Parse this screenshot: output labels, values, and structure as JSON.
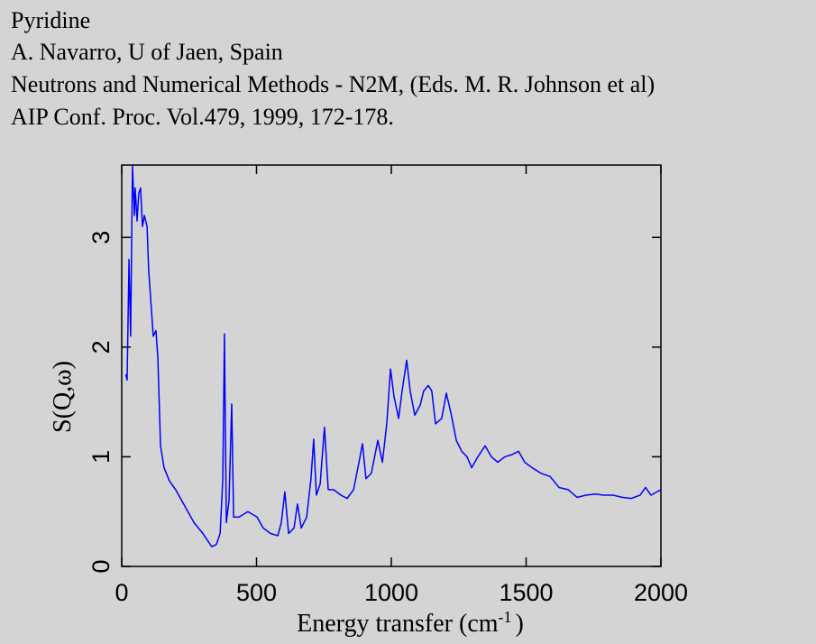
{
  "header": {
    "lines": [
      "Pyridine",
      "A. Navarro, U of Jaen, Spain",
      "Neutrons and Numerical Methods - N2M, (Eds. M. R. Johnson et al)",
      "AIP Conf. Proc. Vol.479, 1999, 172-178."
    ]
  },
  "chart_data": {
    "type": "line",
    "xlabel": {
      "text": "Energy transfer (cm",
      "superscript": "-1",
      "suffix": ")"
    },
    "ylabel": "S(Q,ω)",
    "xlim": [
      0,
      2000
    ],
    "ylim": [
      0,
      3.66
    ],
    "xticks": [
      0,
      500,
      1000,
      1500,
      2000
    ],
    "yticks": [
      0,
      1,
      2,
      3
    ],
    "grid": false,
    "series": [
      {
        "color": "#0000ff",
        "x": [
          15,
          20,
          27,
          33,
          40,
          47,
          50,
          57,
          63,
          70,
          77,
          84,
          94,
          100,
          110,
          117,
          127,
          134,
          144,
          157,
          177,
          200,
          234,
          268,
          301,
          334,
          351,
          365,
          375,
          381,
          388,
          398,
          408,
          415,
          435,
          468,
          502,
          525,
          552,
          579,
          592,
          605,
          619,
          639,
          652,
          666,
          686,
          702,
          712,
          722,
          736,
          752,
          766,
          786,
          813,
          836,
          860,
          880,
          893,
          906,
          926,
          950,
          967,
          983,
          997,
          1010,
          1027,
          1040,
          1057,
          1070,
          1087,
          1107,
          1120,
          1137,
          1150,
          1164,
          1187,
          1204,
          1221,
          1241,
          1261,
          1281,
          1298,
          1321,
          1348,
          1371,
          1395,
          1421,
          1448,
          1472,
          1495,
          1522,
          1555,
          1589,
          1622,
          1656,
          1689,
          1722,
          1756,
          1789,
          1823,
          1856,
          1890,
          1923,
          1943,
          1963,
          2000
        ],
        "values": [
          1.75,
          1.7,
          2.8,
          2.1,
          3.65,
          3.2,
          3.45,
          3.15,
          3.4,
          3.45,
          3.1,
          3.2,
          3.1,
          2.7,
          2.35,
          2.1,
          2.15,
          1.9,
          1.1,
          0.9,
          0.78,
          0.7,
          0.55,
          0.4,
          0.3,
          0.18,
          0.2,
          0.3,
          0.8,
          2.12,
          0.4,
          0.6,
          1.48,
          0.45,
          0.45,
          0.5,
          0.45,
          0.35,
          0.3,
          0.28,
          0.4,
          0.68,
          0.3,
          0.35,
          0.57,
          0.35,
          0.45,
          0.8,
          1.16,
          0.65,
          0.75,
          1.27,
          0.7,
          0.7,
          0.65,
          0.62,
          0.7,
          0.95,
          1.12,
          0.8,
          0.85,
          1.15,
          0.95,
          1.3,
          1.8,
          1.55,
          1.35,
          1.6,
          1.88,
          1.6,
          1.38,
          1.47,
          1.6,
          1.65,
          1.6,
          1.3,
          1.35,
          1.58,
          1.4,
          1.15,
          1.05,
          1.0,
          0.9,
          1.0,
          1.1,
          1.0,
          0.95,
          1.0,
          1.02,
          1.05,
          0.95,
          0.9,
          0.85,
          0.82,
          0.72,
          0.7,
          0.63,
          0.65,
          0.66,
          0.65,
          0.65,
          0.63,
          0.62,
          0.65,
          0.72,
          0.65,
          0.7
        ]
      }
    ]
  }
}
